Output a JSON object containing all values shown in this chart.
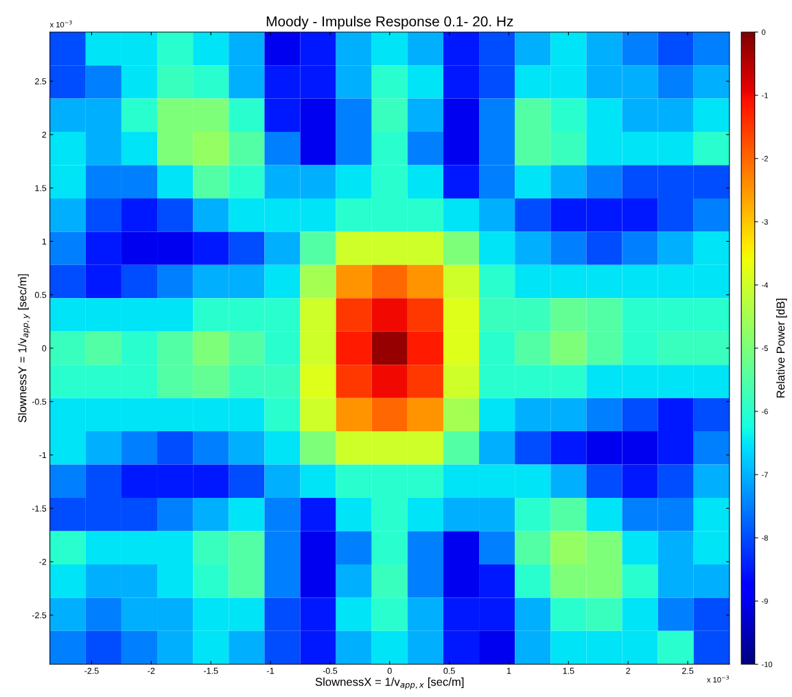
{
  "chart_data": {
    "type": "heatmap",
    "title": "Moody - Impulse Response 0.1- 20. Hz",
    "xlabel": "SlownessX = 1/v$_{app,x}$ [sec/m]",
    "ylabel": "SlownessY = 1/v$_{app,y}$ [sec/m]",
    "clabel": "Relative Power [dB]",
    "annotations": [
      "x 10$^{−3}$",
      "x 10$^{−3}$"
    ],
    "xlim": [
      -2.85,
      2.85
    ],
    "ylim": [
      -2.96,
      2.96
    ],
    "xticks": [
      -2.5,
      -2,
      -1.5,
      -1,
      -0.5,
      0,
      0.5,
      1,
      1.5,
      2,
      2.5
    ],
    "yticks": [
      -2.5,
      -2,
      -1.5,
      -1,
      -0.5,
      0,
      0.5,
      1,
      1.5,
      2,
      2.5
    ],
    "clim": [
      -10,
      0
    ],
    "cticks": [
      -10,
      -9,
      -8,
      -7,
      -6,
      -5,
      -4,
      -3,
      -2,
      -1,
      0
    ],
    "grid": false,
    "cells": [
      [
        -8,
        -6.5,
        -6.5,
        -6,
        -6.5,
        -7,
        -9,
        -8.5,
        -7,
        -6.5,
        -7,
        -8.5,
        -8,
        -7,
        -6.5,
        -7,
        -7.5,
        -8,
        -7.5
      ],
      [
        -8,
        -7.5,
        -6.5,
        -5.8,
        -6,
        -7,
        -8.5,
        -8.5,
        -7,
        -6,
        -6.5,
        -8.5,
        -8,
        -6.5,
        -6.5,
        -7,
        -7,
        -7.5,
        -7
      ],
      [
        -7,
        -7,
        -6,
        -5,
        -5,
        -6,
        -8.5,
        -9,
        -7.5,
        -5.8,
        -7,
        -9,
        -7.5,
        -5.5,
        -6,
        -6.5,
        -7,
        -7,
        -6.5
      ],
      [
        -6.5,
        -7,
        -6.5,
        -5,
        -4.7,
        -5.5,
        -7.5,
        -9,
        -7.5,
        -6,
        -7.5,
        -9,
        -7.5,
        -5.5,
        -5.8,
        -6.5,
        -6.5,
        -6.5,
        -6
      ],
      [
        -6.5,
        -7.5,
        -7.5,
        -6.5,
        -5.5,
        -6,
        -7,
        -7,
        -6.5,
        -6,
        -6.5,
        -8.5,
        -7.5,
        -6.5,
        -7,
        -7.5,
        -8,
        -8,
        -8
      ],
      [
        -7,
        -8,
        -8.5,
        -8,
        -7,
        -6.5,
        -6.5,
        -6.5,
        -6,
        -6,
        -6,
        -6.5,
        -7,
        -8,
        -8.5,
        -8.5,
        -8.5,
        -8,
        -7.5
      ],
      [
        -7.5,
        -8.5,
        -9,
        -9,
        -8.5,
        -8,
        -7,
        -5.5,
        -4,
        -4,
        -4,
        -5,
        -6.5,
        -7,
        -7.5,
        -8,
        -7.5,
        -7,
        -6.5
      ],
      [
        -8,
        -8.5,
        -8,
        -7.5,
        -7,
        -7,
        -6.5,
        -4.5,
        -2.5,
        -2,
        -2.5,
        -4,
        -6,
        -6.5,
        -6.5,
        -6.5,
        -6.5,
        -6.5,
        -6.5
      ],
      [
        -6.5,
        -6.5,
        -6.5,
        -6.5,
        -6,
        -6,
        -6,
        -4,
        -1.5,
        -1,
        -1.5,
        -3.8,
        -5.8,
        -5.8,
        -5.3,
        -5.5,
        -6,
        -6,
        -6
      ],
      [
        -5.8,
        -5.5,
        -6,
        -5.5,
        -5,
        -5.5,
        -6,
        -4,
        -1.2,
        -0.2,
        -1.2,
        -3.8,
        -6,
        -5.5,
        -5,
        -5.5,
        -6,
        -5.8,
        -5.8
      ],
      [
        -6,
        -6,
        -6,
        -5.5,
        -5.3,
        -5.8,
        -5.8,
        -3.8,
        -1.5,
        -1,
        -1.5,
        -4,
        -6,
        -6,
        -6,
        -6.5,
        -6.5,
        -6.5,
        -6.5
      ],
      [
        -6.5,
        -6.5,
        -6.5,
        -6.5,
        -6.5,
        -6.5,
        -6,
        -4,
        -2.5,
        -2,
        -2.5,
        -4.5,
        -6.5,
        -7,
        -7,
        -7.5,
        -8,
        -8.5,
        -8
      ],
      [
        -6.5,
        -7,
        -7.5,
        -8,
        -7.5,
        -7,
        -6.5,
        -5,
        -4,
        -4,
        -4,
        -5.5,
        -7,
        -8,
        -8.5,
        -9,
        -9,
        -8.5,
        -7.5
      ],
      [
        -7.5,
        -8,
        -8.5,
        -8.5,
        -8.5,
        -8,
        -7,
        -6.5,
        -6,
        -6,
        -6,
        -6.5,
        -6.5,
        -6.5,
        -7,
        -8,
        -8.5,
        -8,
        -7
      ],
      [
        -8,
        -8,
        -8,
        -7.5,
        -7,
        -6.5,
        -7.5,
        -8.5,
        -6.5,
        -6,
        -6.5,
        -7,
        -7,
        -6,
        -5.5,
        -6.5,
        -7.5,
        -7.5,
        -6.5
      ],
      [
        -6,
        -6.5,
        -6.5,
        -6.5,
        -5.8,
        -5.5,
        -7.5,
        -9,
        -7.5,
        -6,
        -7.5,
        -9,
        -7.5,
        -5.5,
        -4.7,
        -5,
        -6.5,
        -7,
        -6.5
      ],
      [
        -6.5,
        -7,
        -7,
        -6.5,
        -6,
        -5.5,
        -7.5,
        -9,
        -7,
        -5.8,
        -7.5,
        -9,
        -8.5,
        -6,
        -5,
        -5,
        -6,
        -7,
        -7
      ],
      [
        -7,
        -7.5,
        -7,
        -7,
        -6.5,
        -6.5,
        -8,
        -8.5,
        -6.5,
        -6,
        -7,
        -8.5,
        -8.5,
        -7,
        -6,
        -5.8,
        -6.5,
        -7.5,
        -8
      ],
      [
        -7.5,
        -8,
        -7.5,
        -7,
        -6.5,
        -7,
        -8,
        -8.5,
        -7,
        -6.5,
        -7,
        -8.5,
        -9,
        -7,
        -6.5,
        -6.5,
        -6.5,
        -6,
        -8
      ]
    ]
  }
}
